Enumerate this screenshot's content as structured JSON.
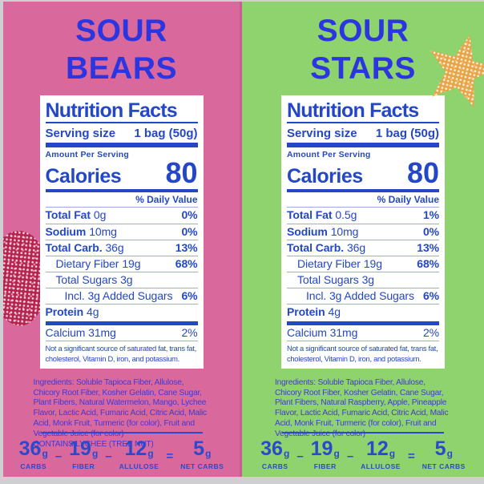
{
  "colors": {
    "left_bg": "#d9689d",
    "right_bg": "#8fd36e",
    "title_blue": "#2b36e0",
    "nutrition_blue": "#2447c7",
    "ingredients_blue": "#4038d8",
    "bear_gummy": "#b5234f",
    "star_gummy": "#e7a449",
    "edge_gray": "#cfcfd3"
  },
  "panels": [
    {
      "title_line1": "SOUR",
      "title_line2": "BEARS",
      "gummy_photo": "sugared-gummy-bear",
      "nutrition": {
        "title": "Nutrition Facts",
        "serving_label": "Serving size",
        "serving_value": "1 bag (50g)",
        "amount_per_serving": "Amount Per Serving",
        "calories_label": "Calories",
        "calories_value": "80",
        "daily_value_header": "% Daily Value",
        "rows": [
          {
            "name": "Total Fat",
            "value": "0g",
            "pct": "0%"
          },
          {
            "name": "Sodium",
            "value": "10mg",
            "pct": "0%"
          },
          {
            "name": "Total Carb.",
            "value": "36g",
            "pct": "13%"
          },
          {
            "name": "Dietary Fiber",
            "value": "19g",
            "pct": "68%"
          },
          {
            "name": "Total Sugars",
            "value": "3g",
            "pct": ""
          },
          {
            "name": "Incl. 3g Added Sugars",
            "value": "",
            "pct": "6%"
          },
          {
            "name": "Protein",
            "value": "4g",
            "pct": ""
          }
        ],
        "calcium_label": "Calcium 31mg",
        "calcium_pct": "2%",
        "footnote": "Not a significant source of saturated fat, trans fat, cholesterol, Vitamin D, iron, and potassium."
      },
      "ingredients": "Ingredients: Soluble Tapioca Fiber, Allulose, Chicory Root Fiber, Kosher Gelatin, Cane Sugar, Plant Fibers, Natural Watermelon, Mango, Lychee Flavor, Lactic Acid, Fumaric Acid, Citric Acid, Malic Acid, Monk Fruit, Turmeric (for color), Fruit and Vegetable Juice (for color)",
      "contains": "CONTAINS LYCHEE (TREE NUT)",
      "macros": {
        "op1": "–",
        "op2": "–",
        "op3": "=",
        "items": [
          {
            "value": "36",
            "unit": "g",
            "label": "CARBS"
          },
          {
            "value": "19",
            "unit": "g",
            "label": "FIBER"
          },
          {
            "value": "12",
            "unit": "g",
            "label": "ALLULOSE"
          },
          {
            "value": "5",
            "unit": "g",
            "label": "NET CARBS"
          }
        ]
      }
    },
    {
      "title_line1": "SOUR",
      "title_line2": "STARS",
      "gummy_photo": "sugared-gummy-star",
      "nutrition": {
        "title": "Nutrition Facts",
        "serving_label": "Serving size",
        "serving_value": "1 bag (50g)",
        "amount_per_serving": "Amount Per Serving",
        "calories_label": "Calories",
        "calories_value": "80",
        "daily_value_header": "% Daily Value",
        "rows": [
          {
            "name": "Total Fat",
            "value": "0.5g",
            "pct": "1%"
          },
          {
            "name": "Sodium",
            "value": "10mg",
            "pct": "0%"
          },
          {
            "name": "Total Carb.",
            "value": "36g",
            "pct": "13%"
          },
          {
            "name": "Dietary Fiber",
            "value": "19g",
            "pct": "68%"
          },
          {
            "name": "Total Sugars",
            "value": "3g",
            "pct": ""
          },
          {
            "name": "Incl. 3g Added Sugars",
            "value": "",
            "pct": "6%"
          },
          {
            "name": "Protein",
            "value": "4g",
            "pct": ""
          }
        ],
        "calcium_label": "Calcium 31mg",
        "calcium_pct": "2%",
        "footnote": "Not a significant source of saturated fat, trans fat, cholesterol, Vitamin D, iron, and potassium."
      },
      "ingredients": "Ingredients: Soluble Tapioca Fiber, Allulose, Chicory Root Fiber, Kosher Gelatin, Cane Sugar, Plant Fibers, Natural Raspberry, Apple, Pineapple Flavor, Lactic Acid, Fumaric Acid, Citric Acid, Malic Acid, Monk Fruit, Turmeric (for color), Fruit and Vegetable Juice (for color)",
      "contains": "",
      "macros": {
        "op1": "–",
        "op2": "–",
        "op3": "=",
        "items": [
          {
            "value": "36",
            "unit": "g",
            "label": "CARBS"
          },
          {
            "value": "19",
            "unit": "g",
            "label": "FIBER"
          },
          {
            "value": "12",
            "unit": "g",
            "label": "ALLULOSE"
          },
          {
            "value": "5",
            "unit": "g",
            "label": "NET CARBS"
          }
        ]
      }
    }
  ]
}
